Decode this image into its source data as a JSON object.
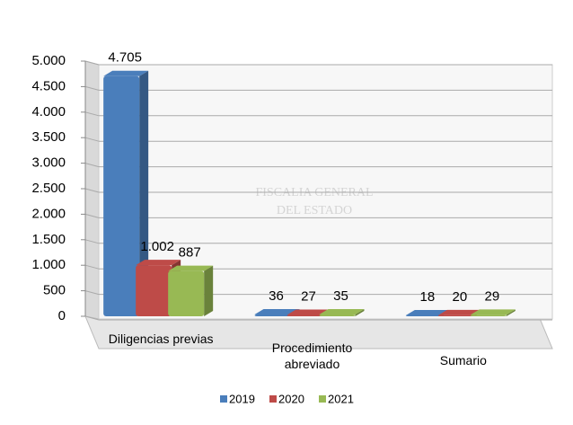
{
  "chart_data": {
    "type": "bar",
    "categories": [
      "Diligencias previas",
      "Procedimiento abreviado",
      "Sumario"
    ],
    "series": [
      {
        "name": "2019",
        "color": "#4a7ebb",
        "values": [
          4705,
          36,
          18
        ],
        "value_labels": [
          "4.705",
          "36",
          "18"
        ]
      },
      {
        "name": "2020",
        "color": "#be4b48",
        "values": [
          1002,
          27,
          20
        ],
        "value_labels": [
          "1.002",
          "27",
          "20"
        ]
      },
      {
        "name": "2021",
        "color": "#98b954",
        "values": [
          887,
          35,
          29
        ],
        "value_labels": [
          "887",
          "35",
          "29"
        ]
      }
    ],
    "ylim": [
      0,
      5000
    ],
    "yticks": [
      0,
      500,
      {
        "value": 1000,
        "label": "1.000"
      },
      {
        "value": 1500,
        "label": "1.500"
      },
      {
        "value": 2000,
        "label": "2.000"
      },
      {
        "value": 2500,
        "label": "2.500"
      },
      {
        "value": 3000,
        "label": "3.000"
      },
      {
        "value": 3500,
        "label": "3.500"
      },
      {
        "value": 4000,
        "label": "4.000"
      },
      {
        "value": 4500,
        "label": "4.500"
      },
      {
        "value": 5000,
        "label": "5.000"
      }
    ],
    "grid": true,
    "watermark": [
      "FISCALIA GENERAL",
      "DEL ESTADO"
    ]
  }
}
